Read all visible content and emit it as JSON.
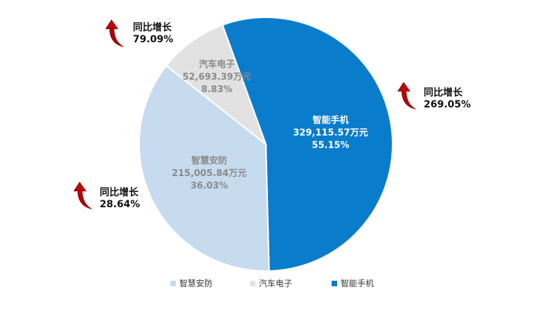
{
  "chart_data": {
    "type": "pie",
    "categories": [
      "智能手机",
      "智慧安防",
      "汽车电子"
    ],
    "values": [
      329115.57,
      215005.84,
      52693.39
    ],
    "slices": [
      {
        "name": "智能手机",
        "value_text": "329,115.57万元",
        "percent_text": "55.15%",
        "percent": 55.15,
        "color": "#0a7ccc",
        "label_color": "#ffffff"
      },
      {
        "name": "智慧安防",
        "value_text": "215,005.84万元",
        "percent_text": "36.03%",
        "percent": 36.03,
        "color": "#c7dbee",
        "label_color": "#8a8a8a"
      },
      {
        "name": "汽车电子",
        "value_text": "52,693.39万元",
        "percent_text": "8.83%",
        "percent": 8.83,
        "color": "#e2e2e2",
        "label_color": "#8a8a8a"
      }
    ],
    "growth": [
      {
        "slice": "汽车电子",
        "label": "同比增长",
        "value": "79.09%"
      },
      {
        "slice": "智能手机",
        "label": "同比增长",
        "value": "269.05%"
      },
      {
        "slice": "智慧安防",
        "label": "同比增长",
        "value": "28.64%"
      }
    ],
    "legend": {
      "position": "bottom",
      "items": [
        "智慧安防",
        "汽车电子",
        "智能手机"
      ]
    },
    "arrow_color": "#c00000"
  }
}
